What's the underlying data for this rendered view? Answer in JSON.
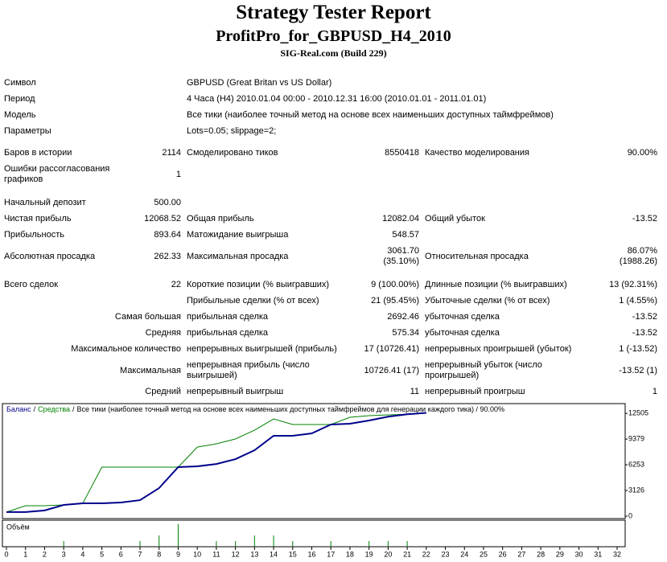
{
  "header": {
    "title": "Strategy Tester Report",
    "subtitle": "ProfitPro_for_GBPUSD_H4_2010",
    "build": "SIG-Real.com (Build 229)"
  },
  "table": {
    "rows": [
      [
        "Символ",
        "GBPUSD (Great Britan vs US Dollar)"
      ],
      [
        "Период",
        "4 Часа (H4) 2010.01.04 00:00 - 2010.12.31 16:00 (2010.01.01 - 2011.01.01)"
      ],
      [
        "Модель",
        "Все тики (наиболее точный метод на основе всех наименьших доступных таймфреймов)"
      ],
      [
        "Параметры",
        "Lots=0.05; slippage=2;"
      ],
      [
        "Баров в истории",
        "2114",
        "Смоделировано тиков",
        "8550418",
        "Качество моделирования",
        "90.00%"
      ],
      [
        [
          "Ошибки рассогласования",
          "графиков"
        ],
        "1",
        null,
        null,
        null,
        null
      ],
      [
        "Начальный депозит",
        "500.00",
        null,
        null,
        null,
        null
      ],
      [
        "Чистая прибыль",
        "12068.52",
        "Общая прибыль",
        "12082.04",
        "Общий убыток",
        "-13.52"
      ],
      [
        "Прибыльность",
        "893.64",
        "Матожидание выигрыша",
        "548.57",
        null,
        null
      ],
      [
        "Абсолютная просадка",
        "262.33",
        "Максимальная просадка",
        [
          "3061.70",
          "(35.10%)"
        ],
        "Относительная просадка",
        [
          "86.07%",
          "(1988.26)"
        ]
      ],
      [
        "Всего сделок",
        "22",
        "Короткие позиции (% выигравших)",
        "9 (100.00%)",
        "Длинные позиции (% выигравших)",
        "13 (92.31%)"
      ],
      [
        null,
        null,
        "Прибыльные сделки (% от всех)",
        "21 (95.45%)",
        "Убыточные сделки (% от всех)",
        "1 (4.55%)"
      ],
      [
        "Самая большая",
        null,
        "прибыльная сделка",
        "2692.46",
        "убыточная сделка",
        "-13.52"
      ],
      [
        "Средняя",
        null,
        "прибыльная сделка",
        "575.34",
        "убыточная сделка",
        "-13.52"
      ],
      [
        "Максимальное количество",
        null,
        "непрерывных выигрышей (прибыль)",
        "17 (10726.41)",
        "непрерывных проигрышей (убыток)",
        "1 (-13.52)"
      ],
      [
        "Максимальная",
        null,
        [
          "непрерывная прибыль (число",
          "выигрышей)"
        ],
        "10726.41 (17)",
        [
          "непрерывный убыток (число",
          "проигрышей)"
        ],
        "-13.52 (1)"
      ],
      [
        "Средний",
        null,
        "непрерывный выигрыш",
        "11",
        "непрерывный проигрыш",
        "1"
      ]
    ]
  },
  "chart_data": {
    "type": "line",
    "legend_separator": "/",
    "note": "Все тики (наиболее точный метод на основе всех наименьших доступных таймфреймов для генерации каждого тика) / 90.00%",
    "x": [
      0,
      1,
      2,
      3,
      4,
      5,
      6,
      7,
      8,
      9,
      10,
      11,
      12,
      13,
      14,
      15,
      16,
      17,
      18,
      19,
      20,
      21,
      22
    ],
    "series": [
      {
        "name": "Баланс",
        "color": "#00008b",
        "values": [
          500,
          500,
          700,
          1370,
          1560,
          1560,
          1660,
          1950,
          3420,
          5970,
          6060,
          6350,
          6940,
          8020,
          9780,
          9780,
          10070,
          11150,
          11250,
          11640,
          12100,
          12400,
          12568.52
        ]
      },
      {
        "name": "Средства",
        "color": "#008000",
        "values": [
          500,
          1270,
          1270,
          1370,
          1560,
          5970,
          5970,
          5970,
          5970,
          5970,
          8400,
          8800,
          9390,
          10460,
          11830,
          11150,
          11150,
          11150,
          12030,
          12230,
          12330,
          12400,
          12568.52
        ]
      }
    ],
    "ylim": [
      0,
      13400
    ],
    "yticks": [
      0,
      3126,
      6253,
      9379,
      12505
    ],
    "xlim": [
      0,
      32
    ],
    "xticks": [
      0,
      1,
      2,
      3,
      4,
      5,
      6,
      7,
      8,
      9,
      10,
      11,
      12,
      13,
      14,
      15,
      16,
      17,
      18,
      19,
      20,
      21,
      22,
      23,
      24,
      25,
      26,
      27,
      28,
      29,
      30,
      31,
      32
    ],
    "volume": {
      "label": "Объём",
      "color": "#008000",
      "x": [
        3,
        7,
        8,
        9,
        11,
        12,
        13,
        14,
        15,
        17,
        19,
        20,
        21
      ],
      "values": [
        1,
        1,
        2,
        4,
        1,
        1,
        2,
        2,
        1,
        1,
        1,
        1,
        1
      ],
      "ylim": [
        0,
        4.4
      ]
    }
  }
}
